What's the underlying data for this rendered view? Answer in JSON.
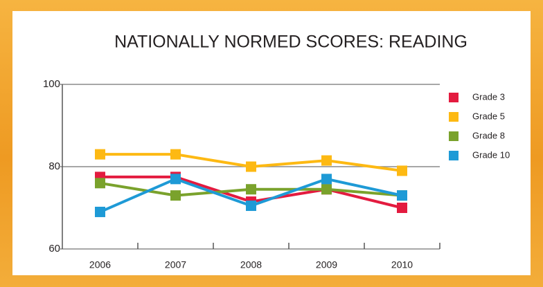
{
  "chart_data": {
    "type": "line",
    "title": "NATIONALLY NORMED SCORES:  READING",
    "categories": [
      "2006",
      "2007",
      "2008",
      "2009",
      "2010"
    ],
    "series": [
      {
        "name": "Grade 3",
        "color": "#e31b3f",
        "values": [
          77.5,
          77.5,
          71.5,
          74.5,
          70
        ]
      },
      {
        "name": "Grade 5",
        "color": "#fdb913",
        "values": [
          83,
          83,
          80,
          81.5,
          79
        ]
      },
      {
        "name": "Grade 8",
        "color": "#7aa22c",
        "values": [
          76,
          73,
          74.5,
          74.5,
          73
        ]
      },
      {
        "name": "Grade 10",
        "color": "#1e9ad6",
        "values": [
          69,
          77,
          70.5,
          77,
          73
        ]
      }
    ],
    "ylim": [
      60,
      100
    ],
    "yticks": [
      60,
      80,
      100
    ],
    "grid": true,
    "legend": "right"
  }
}
